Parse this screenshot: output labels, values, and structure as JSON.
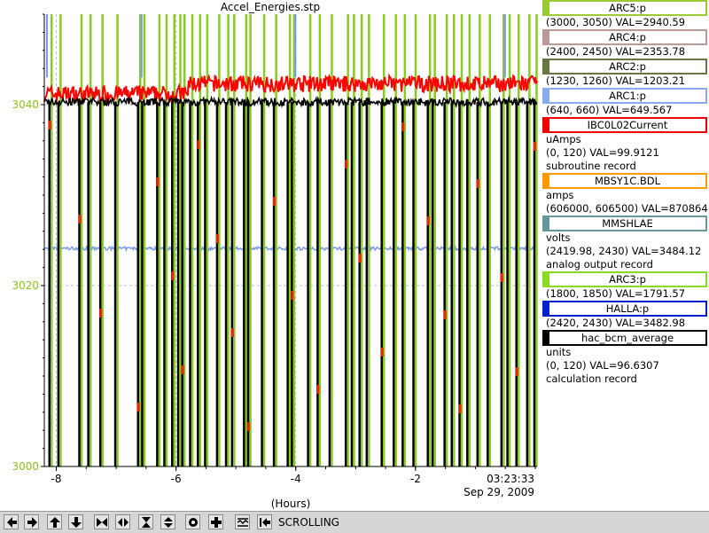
{
  "window": {
    "title": "Accel_Energies.stp"
  },
  "chart_data": {
    "type": "line",
    "title": "Accel_Energies.stp",
    "xlabel": "(Hours)",
    "ylabel": "",
    "xlim": [
      -8.2,
      0.03
    ],
    "ylim": [
      3000,
      3050
    ],
    "x_ticks": [
      -8,
      -6,
      -4,
      -2
    ],
    "x_tick_labels": [
      "-8",
      "-6",
      "-4",
      "-2"
    ],
    "y_ticks": [
      3000,
      3020,
      3040
    ],
    "y_tick_labels": [
      "3000",
      "3020",
      "3040"
    ],
    "time_label": "03:23:33",
    "date_label": "Sep 29, 2009",
    "grid": true,
    "series": [
      {
        "name": "IBC0L02Current",
        "color": "#ff0000",
        "approx_level": 3041.2,
        "step_at": -5.8,
        "level_after_step": 3042.3
      },
      {
        "name": "hac_bcm_average",
        "color": "#000000",
        "approx_level": 3040.3
      },
      {
        "name": "ARC1:p",
        "color": "#7799ee",
        "approx_level": 3024.1
      },
      {
        "name": "ARC3:p",
        "color": "#88cc22"
      }
    ],
    "trips": [
      -8.1,
      -7.95,
      -7.6,
      -7.45,
      -7.25,
      -7.0,
      -6.62,
      -6.55,
      -6.3,
      -6.18,
      -6.05,
      -5.95,
      -5.88,
      -5.75,
      -5.62,
      -5.5,
      -5.3,
      -5.15,
      -5.05,
      -4.85,
      -4.78,
      -4.55,
      -4.35,
      -4.12,
      -4.05,
      -3.78,
      -3.62,
      -3.42,
      -3.15,
      -3.05,
      -2.92,
      -2.8,
      -2.55,
      -2.35,
      -2.2,
      -2.02,
      -1.78,
      -1.7,
      -1.5,
      -1.38,
      -1.25,
      -1.12,
      -0.95,
      -0.78,
      -0.55,
      -0.45,
      -0.3,
      -0.12,
      0.0
    ]
  },
  "legend": [
    {
      "label": "ARC5:p",
      "color": "#99cc33",
      "lines": [
        "(3000, 3050) VAL=2940.59"
      ]
    },
    {
      "label": "ARC4:p",
      "color": "#bb9999",
      "lines": [
        "(2400, 2450) VAL=2353.78"
      ]
    },
    {
      "label": "ARC2:p",
      "color": "#667744",
      "lines": [
        "(1230, 1260) VAL=1203.21"
      ]
    },
    {
      "label": "ARC1:p",
      "color": "#88aaee",
      "lines": [
        "(640, 660) VAL=649.567"
      ]
    },
    {
      "label": "IBC0L02Current",
      "color": "#ee0000",
      "lines": [
        "uAmps",
        "(0, 120) VAL=99.9121",
        "subroutine record"
      ]
    },
    {
      "label": "MBSY1C.BDL",
      "color": "#ff9900",
      "lines": [
        "amps",
        "(606000, 606500) VAL=870864"
      ]
    },
    {
      "label": "MMSHLAE",
      "color": "#669999",
      "lines": [
        "volts",
        "(2419.98, 2430) VAL=3484.12",
        "analog output record"
      ]
    },
    {
      "label": "ARC3:p",
      "color": "#88dd22",
      "lines": [
        "(1800, 1850) VAL=1791.57"
      ]
    },
    {
      "label": "HALLA:p",
      "color": "#0022cc",
      "lines": [
        "(2420, 2430) VAL=3482.98"
      ]
    },
    {
      "label": "hac_bcm_average",
      "color": "#000000",
      "lines": [
        "units",
        "(0, 120) VAL=96.6307",
        "calculation record"
      ]
    }
  ],
  "toolbar": {
    "buttons": [
      "pan-left-icon",
      "pan-right-icon",
      "pan-up-icon",
      "pan-down-icon",
      "zoom-x-in-icon",
      "zoom-x-out-icon",
      "zoom-y-in-icon",
      "zoom-y-out-icon",
      "auto-scale-icon",
      "add-icon",
      "config-icon",
      "scroll-icon"
    ],
    "status": "SCROLLING"
  }
}
